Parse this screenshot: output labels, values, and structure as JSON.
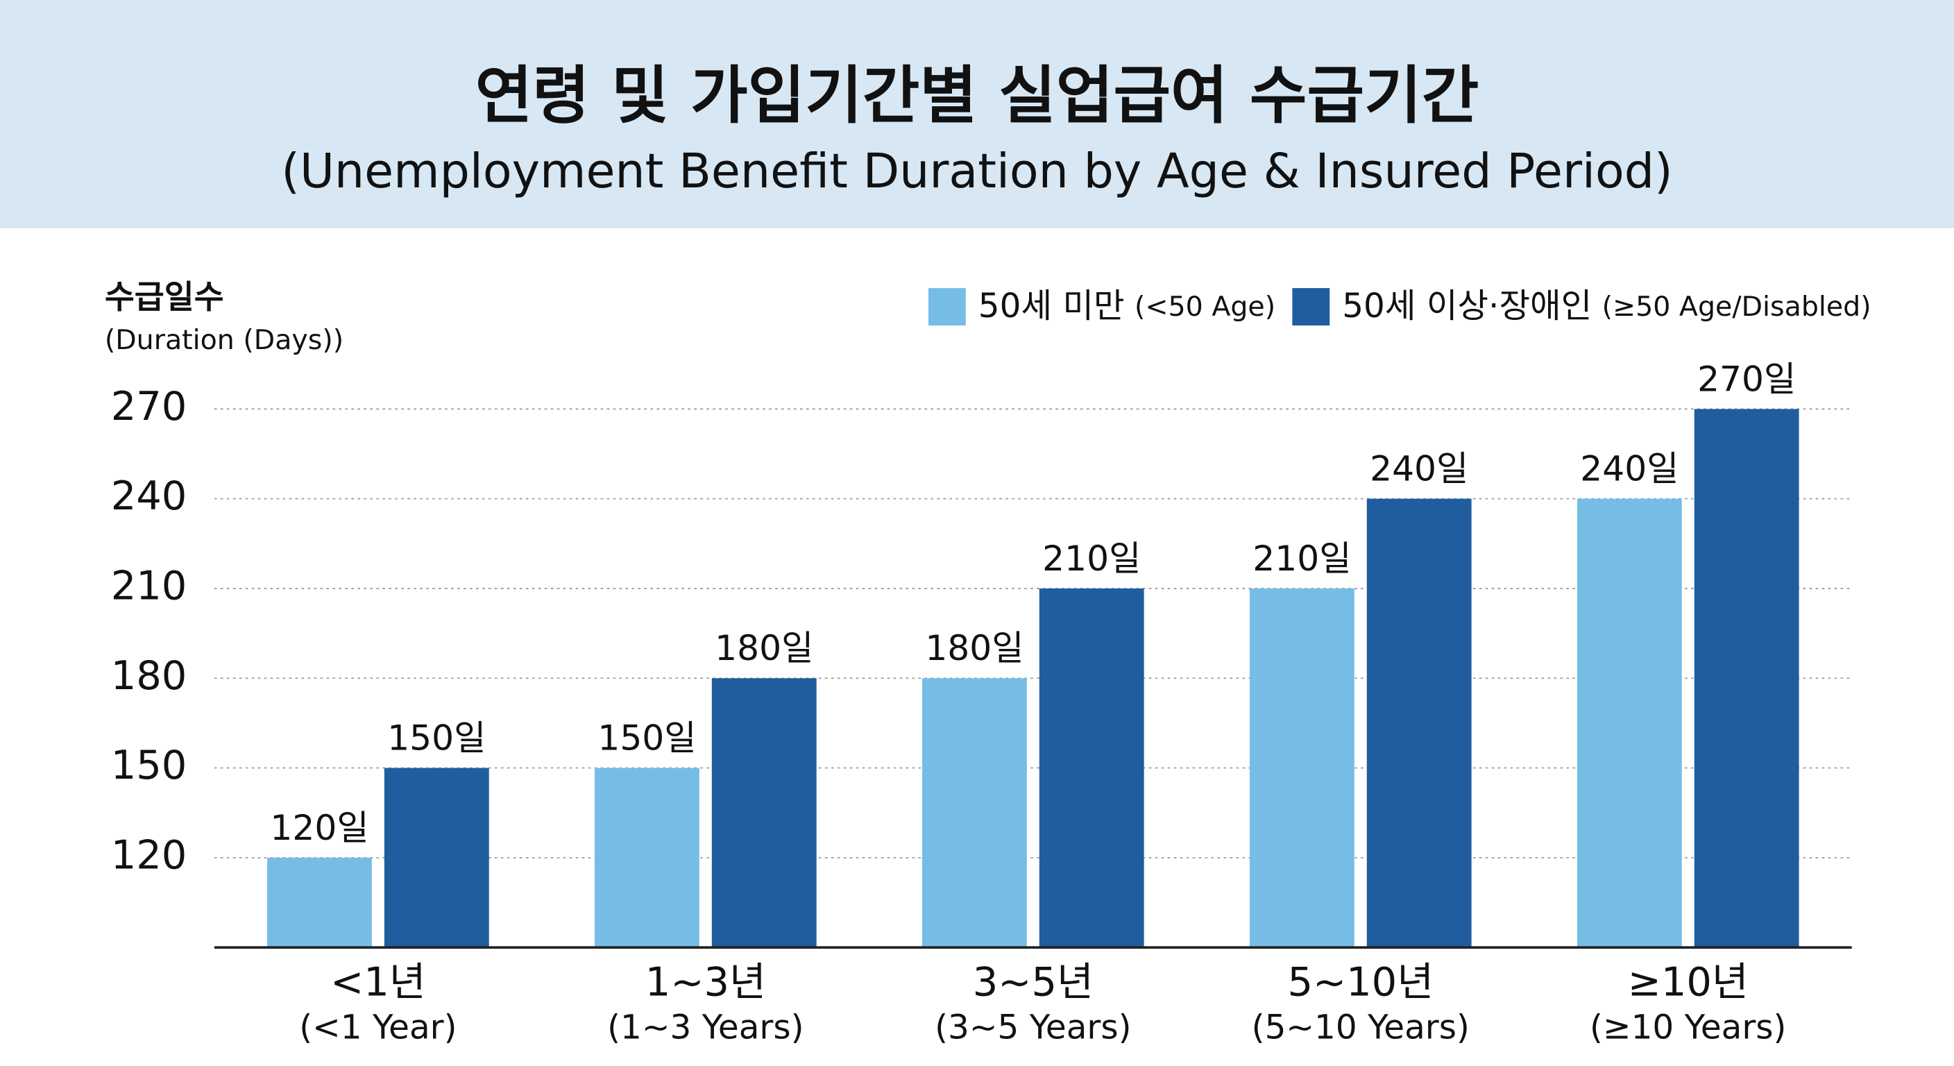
{
  "chart_data": {
    "type": "bar",
    "title": "연령 및 가입기간별 실업급여 수급기간",
    "subtitle": "(Unemployment Benefit Duration by Age & Insured Period)",
    "y_label": "수급일수",
    "y_label_en": "(Duration (Days))",
    "categories": [
      "<1년",
      "1~3년",
      "3~5년",
      "5~10년",
      "≥10년"
    ],
    "categories_en": [
      "(<1 Year)",
      "(1~3 Years)",
      "(3~5 Years)",
      "(5~10 Years)",
      "(≥10 Years)"
    ],
    "series": [
      {
        "name": "50세 미만",
        "name_en": "(<50 Age)",
        "color": "#76bde6",
        "values": [
          120,
          150,
          180,
          210,
          240
        ],
        "value_labels": [
          "120일",
          "150일",
          "180일",
          "210일",
          "240일"
        ]
      },
      {
        "name": "50세 이상·장애인",
        "name_en": "(≥50 Age/Disabled)",
        "color": "#1f5d9f",
        "values": [
          150,
          180,
          210,
          240,
          270
        ],
        "value_labels": [
          "150일",
          "180일",
          "210일",
          "240일",
          "270일"
        ]
      }
    ],
    "ylim": [
      90,
      280
    ],
    "yticks": [
      120,
      150,
      180,
      210,
      240,
      270
    ],
    "grid": true
  }
}
